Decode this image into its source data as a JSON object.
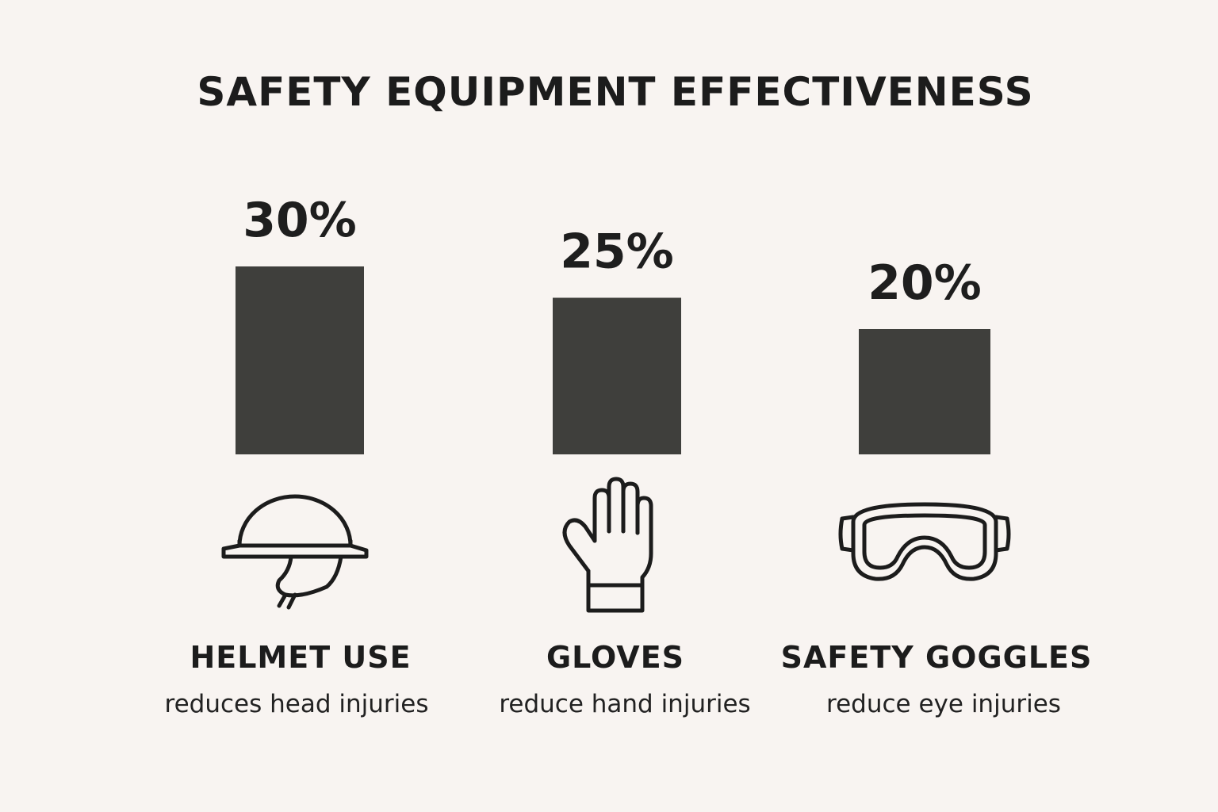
{
  "chart_data": {
    "type": "bar",
    "title": "SAFETY EQUIPMENT EFFECTIVENESS",
    "categories": [
      "HELMET USE",
      "GLOVES",
      "SAFETY GOGGLES"
    ],
    "descriptions": [
      "reduces head injuries",
      "reduce hand injuries",
      "reduce eye injuries"
    ],
    "values": [
      30,
      25,
      20
    ],
    "value_labels": [
      "30%",
      "25%",
      "20%"
    ],
    "icons": [
      "hard-hat-icon",
      "glove-icon",
      "goggles-icon"
    ],
    "bar_color": "#3f3f3c",
    "grid": false,
    "legend": "none"
  }
}
